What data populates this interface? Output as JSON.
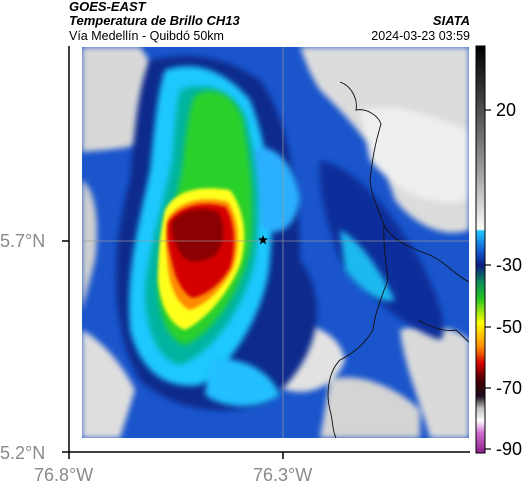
{
  "header": {
    "satellite": "GOES-EAST",
    "product": "Temperatura de Brillo CH13",
    "route": "Vía Medellín - Quibdó 50km",
    "agency": "SIATA",
    "datetime": "2024-03-23 03:59"
  },
  "map": {
    "lat_ticks": [
      {
        "value": 5.7,
        "label": "5.7°N"
      },
      {
        "value": 5.2,
        "label": "5.2°N"
      }
    ],
    "lon_ticks": [
      {
        "value": -76.8,
        "label": "76.8°W"
      },
      {
        "value": -76.3,
        "label": "76.3°W"
      }
    ],
    "marker_icon": "star-icon",
    "colors": {
      "cold_core": "#8b0000",
      "red": "#d40000",
      "orange": "#ff8c00",
      "yellow": "#ffff00",
      "green": "#22c422",
      "teal": "#00b4a0",
      "cyan": "#1ec8ff",
      "blue": "#1560d6",
      "navy": "#0a1e80",
      "gray_cloud": "#d8d8d8",
      "gray_clear": "#f4f4f4"
    }
  },
  "colorbar": {
    "labels": [
      "20",
      "-30",
      "-50",
      "-70",
      "-90"
    ]
  }
}
